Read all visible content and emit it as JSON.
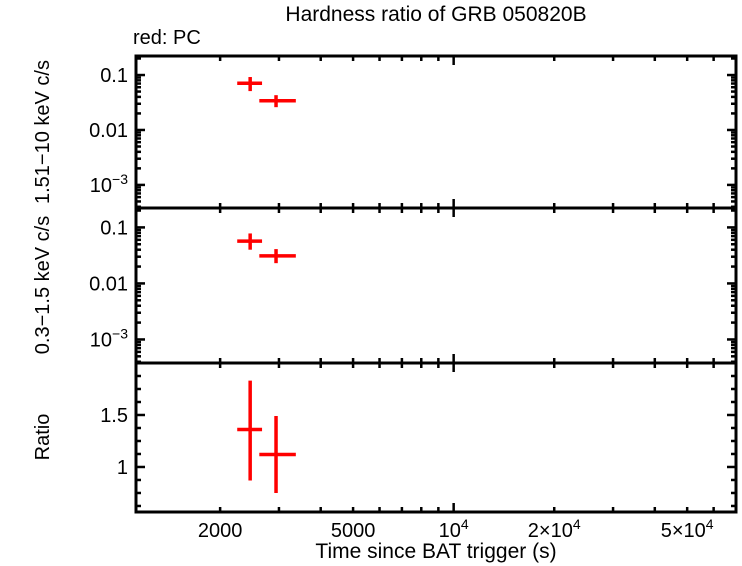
{
  "colors": {
    "data_series": "#ff0000",
    "axis": "#000000",
    "background": "#ffffff"
  },
  "chart_data": {
    "type": "scatter",
    "title": "Hardness ratio of GRB 050820B",
    "annotation": "red: PC",
    "xlabel": "Time since BAT trigger (s)",
    "xscale": "log",
    "xlim": [
      1120,
      70000
    ],
    "grid": false,
    "xticks": [
      {
        "v": 2000,
        "text": "2000"
      },
      {
        "v": 5000,
        "text": "5000"
      },
      {
        "v": 10000,
        "text": "10",
        "sup": "4"
      },
      {
        "v": 20000,
        "text": "2×10",
        "sup": "4"
      },
      {
        "v": 50000,
        "text": "5×10",
        "sup": "4"
      }
    ],
    "panels": [
      {
        "ylabel": "1.51−10 keV c/s",
        "yscale": "log",
        "ylim": [
          0.00038,
          0.222
        ],
        "yticks": [
          {
            "v": 0.1,
            "text": "0.1"
          },
          {
            "v": 0.01,
            "text": "0.01"
          },
          {
            "v": 0.001,
            "text": "10",
            "sup": "−3"
          }
        ],
        "series": [
          {
            "name": "PC",
            "color": "#ff0000",
            "points": [
              {
                "x": 2460,
                "x_lo": 2250,
                "x_hi": 2670,
                "y": 0.071,
                "y_lo": 0.051,
                "y_hi": 0.092
              },
              {
                "x": 2940,
                "x_lo": 2620,
                "x_hi": 3370,
                "y": 0.034,
                "y_lo": 0.026,
                "y_hi": 0.043
              }
            ]
          }
        ]
      },
      {
        "ylabel": "0.3−1.5 keV c/s",
        "yscale": "log",
        "ylim": [
          0.00038,
          0.222
        ],
        "yticks": [
          {
            "v": 0.1,
            "text": "0.1"
          },
          {
            "v": 0.01,
            "text": "0.01"
          },
          {
            "v": 0.001,
            "text": "10",
            "sup": "−3"
          }
        ],
        "series": [
          {
            "name": "PC",
            "color": "#ff0000",
            "points": [
              {
                "x": 2460,
                "x_lo": 2250,
                "x_hi": 2670,
                "y": 0.057,
                "y_lo": 0.04,
                "y_hi": 0.078
              },
              {
                "x": 2940,
                "x_lo": 2620,
                "x_hi": 3370,
                "y": 0.031,
                "y_lo": 0.023,
                "y_hi": 0.041
              }
            ]
          }
        ]
      },
      {
        "ylabel": "Ratio",
        "yscale": "linear",
        "ylim": [
          0.567,
          2.0
        ],
        "ytick_major_step": 0.5,
        "ytick_minor_step": 0.125,
        "yticks": [
          {
            "v": 1.5,
            "text": "1.5"
          },
          {
            "v": 1,
            "text": "1"
          }
        ],
        "series": [
          {
            "name": "PC",
            "color": "#ff0000",
            "points": [
              {
                "x": 2460,
                "x_lo": 2250,
                "x_hi": 2670,
                "y": 1.36,
                "y_lo": 0.87,
                "y_hi": 1.83
              },
              {
                "x": 2940,
                "x_lo": 2620,
                "x_hi": 3370,
                "y": 1.12,
                "y_lo": 0.75,
                "y_hi": 1.49
              }
            ]
          }
        ]
      }
    ]
  }
}
